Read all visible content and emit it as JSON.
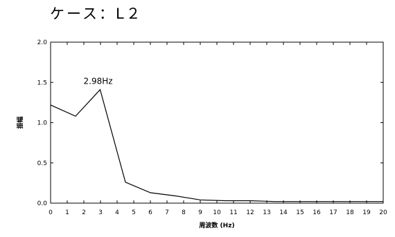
{
  "chart_data": {
    "type": "line",
    "title": "ケース：L２",
    "xlabel": "周波数 (Hz)",
    "ylabel": "振幅",
    "xlim": [
      0,
      20
    ],
    "ylim": [
      0,
      2.0
    ],
    "x_ticks": [
      0,
      1,
      2,
      3,
      4,
      5,
      6,
      7,
      8,
      9,
      10,
      11,
      12,
      13,
      14,
      15,
      16,
      17,
      18,
      19,
      20
    ],
    "y_ticks": [
      "0.0",
      "0.5",
      "1.0",
      "1.5",
      "2.0"
    ],
    "grid": false,
    "series": [
      {
        "x": [
          0,
          1.5,
          2.98,
          4.5,
          6,
          7.5,
          9,
          10.5,
          12,
          13.5,
          15,
          16.5,
          18,
          19.5,
          20
        ],
        "y": [
          1.22,
          1.08,
          1.41,
          0.26,
          0.13,
          0.09,
          0.04,
          0.03,
          0.03,
          0.02,
          0.02,
          0.02,
          0.02,
          0.02,
          0.02
        ]
      }
    ],
    "annotations": [
      {
        "text": "2.98Hz",
        "x": 2.98,
        "y": 1.41
      }
    ]
  }
}
